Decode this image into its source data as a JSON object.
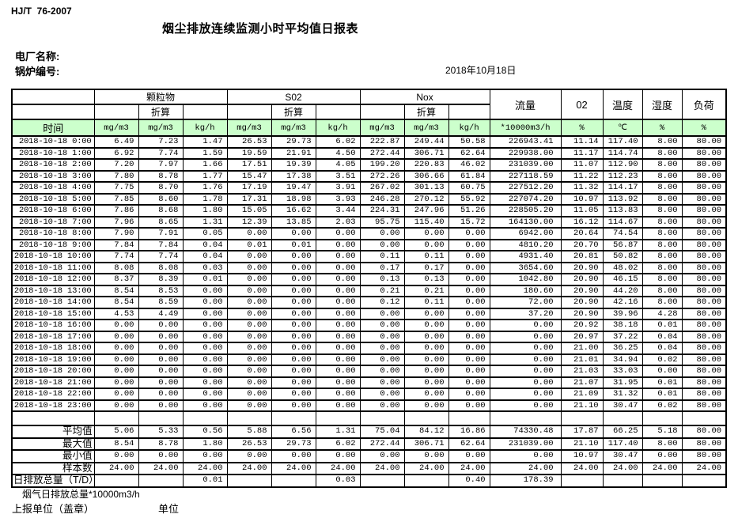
{
  "header": {
    "standard": "HJ/T  76-2007",
    "title": "烟尘排放连续监测小时平均值日报表",
    "plant_label": "电厂名称:",
    "boiler_label": "锅炉编号:",
    "date": "2018年10月18日"
  },
  "colors": {
    "header_green": "#ccffcc",
    "border": "#000000",
    "background": "#ffffff"
  },
  "table": {
    "time_header": "时间",
    "converted_label": "折算",
    "groups": [
      {
        "label": "颗粒物",
        "units": [
          "mg/m3",
          "mg/m3",
          "kg/h"
        ]
      },
      {
        "label": "S02",
        "units": [
          "mg/m3",
          "mg/m3",
          "kg/h"
        ]
      },
      {
        "label": "Nox",
        "units": [
          "mg/m3",
          "mg/m3",
          "kg/h"
        ]
      }
    ],
    "singles": [
      {
        "label": "流量",
        "unit": "*10000m3/h"
      },
      {
        "label": "02",
        "unit": "%"
      },
      {
        "label": "温度",
        "unit": "℃"
      },
      {
        "label": "湿度",
        "unit": "%"
      },
      {
        "label": "负荷",
        "unit": "%"
      }
    ],
    "rows": [
      {
        "time": "2018-10-18 0:00",
        "values": [
          "6.49",
          "7.23",
          "1.47",
          "26.53",
          "29.73",
          "6.02",
          "222.87",
          "249.44",
          "50.58",
          "226943.41",
          "11.14",
          "117.40",
          "8.00",
          "80.00"
        ]
      },
      {
        "time": "2018-10-18 1:00",
        "values": [
          "6.92",
          "7.74",
          "1.59",
          "19.59",
          "21.91",
          "4.50",
          "272.44",
          "306.71",
          "62.64",
          "229938.00",
          "11.17",
          "114.74",
          "8.00",
          "80.00"
        ]
      },
      {
        "time": "2018-10-18 2:00",
        "values": [
          "7.20",
          "7.97",
          "1.66",
          "17.51",
          "19.39",
          "4.05",
          "199.20",
          "220.83",
          "46.02",
          "231039.00",
          "11.07",
          "112.90",
          "8.00",
          "80.00"
        ]
      },
      {
        "time": "2018-10-18 3:00",
        "values": [
          "7.80",
          "8.78",
          "1.77",
          "15.47",
          "17.38",
          "3.51",
          "272.26",
          "306.66",
          "61.84",
          "227118.59",
          "11.22",
          "112.23",
          "8.00",
          "80.00"
        ]
      },
      {
        "time": "2018-10-18 4:00",
        "values": [
          "7.75",
          "8.70",
          "1.76",
          "17.19",
          "19.47",
          "3.91",
          "267.02",
          "301.13",
          "60.75",
          "227512.20",
          "11.32",
          "114.17",
          "8.00",
          "80.00"
        ]
      },
      {
        "time": "2018-10-18 5:00",
        "values": [
          "7.85",
          "8.60",
          "1.78",
          "17.31",
          "18.98",
          "3.93",
          "246.28",
          "270.12",
          "55.92",
          "227074.20",
          "10.97",
          "113.92",
          "8.00",
          "80.00"
        ]
      },
      {
        "time": "2018-10-18 6:00",
        "values": [
          "7.86",
          "8.68",
          "1.80",
          "15.05",
          "16.62",
          "3.44",
          "224.31",
          "247.96",
          "51.26",
          "228505.20",
          "11.05",
          "113.83",
          "8.00",
          "80.00"
        ]
      },
      {
        "time": "2018-10-18 7:00",
        "values": [
          "7.96",
          "8.65",
          "1.31",
          "12.39",
          "13.85",
          "2.03",
          "95.75",
          "115.40",
          "15.72",
          "164130.00",
          "16.12",
          "114.67",
          "8.00",
          "80.00"
        ]
      },
      {
        "time": "2018-10-18 8:00",
        "values": [
          "7.90",
          "7.91",
          "0.05",
          "0.00",
          "0.00",
          "0.00",
          "0.00",
          "0.00",
          "0.00",
          "6942.00",
          "20.64",
          "74.54",
          "8.00",
          "80.00"
        ]
      },
      {
        "time": "2018-10-18 9:00",
        "values": [
          "7.84",
          "7.84",
          "0.04",
          "0.01",
          "0.01",
          "0.00",
          "0.00",
          "0.00",
          "0.00",
          "4810.20",
          "20.70",
          "56.87",
          "8.00",
          "80.00"
        ]
      },
      {
        "time": "2018-10-18 10:00",
        "values": [
          "7.74",
          "7.74",
          "0.04",
          "0.00",
          "0.00",
          "0.00",
          "0.11",
          "0.11",
          "0.00",
          "4931.40",
          "20.81",
          "50.82",
          "8.00",
          "80.00"
        ]
      },
      {
        "time": "2018-10-18 11:00",
        "values": [
          "8.08",
          "8.08",
          "0.03",
          "0.00",
          "0.00",
          "0.00",
          "0.17",
          "0.17",
          "0.00",
          "3654.60",
          "20.90",
          "48.02",
          "8.00",
          "80.00"
        ]
      },
      {
        "time": "2018-10-18 12:00",
        "values": [
          "8.37",
          "8.39",
          "0.01",
          "0.00",
          "0.00",
          "0.00",
          "0.13",
          "0.13",
          "0.00",
          "1042.80",
          "20.90",
          "46.15",
          "8.00",
          "80.00"
        ]
      },
      {
        "time": "2018-10-18 13:00",
        "values": [
          "8.54",
          "8.53",
          "0.00",
          "0.00",
          "0.00",
          "0.00",
          "0.21",
          "0.21",
          "0.00",
          "180.60",
          "20.90",
          "44.20",
          "8.00",
          "80.00"
        ]
      },
      {
        "time": "2018-10-18 14:00",
        "values": [
          "8.54",
          "8.59",
          "0.00",
          "0.00",
          "0.00",
          "0.00",
          "0.12",
          "0.11",
          "0.00",
          "72.00",
          "20.90",
          "42.16",
          "8.00",
          "80.00"
        ]
      },
      {
        "time": "2018-10-18 15:00",
        "values": [
          "4.53",
          "4.49",
          "0.00",
          "0.00",
          "0.00",
          "0.00",
          "0.00",
          "0.00",
          "0.00",
          "37.20",
          "20.90",
          "39.96",
          "4.28",
          "80.00"
        ]
      },
      {
        "time": "2018-10-18 16:00",
        "values": [
          "0.00",
          "0.00",
          "0.00",
          "0.00",
          "0.00",
          "0.00",
          "0.00",
          "0.00",
          "0.00",
          "0.00",
          "20.92",
          "38.18",
          "0.01",
          "80.00"
        ]
      },
      {
        "time": "2018-10-18 17:00",
        "values": [
          "0.00",
          "0.00",
          "0.00",
          "0.00",
          "0.00",
          "0.00",
          "0.00",
          "0.00",
          "0.00",
          "0.00",
          "20.97",
          "37.22",
          "0.04",
          "80.00"
        ]
      },
      {
        "time": "2018-10-18 18:00",
        "values": [
          "0.00",
          "0.00",
          "0.00",
          "0.00",
          "0.00",
          "0.00",
          "0.00",
          "0.00",
          "0.00",
          "0.00",
          "21.00",
          "36.25",
          "0.04",
          "80.00"
        ]
      },
      {
        "time": "2018-10-18 19:00",
        "values": [
          "0.00",
          "0.00",
          "0.00",
          "0.00",
          "0.00",
          "0.00",
          "0.00",
          "0.00",
          "0.00",
          "0.00",
          "21.01",
          "34.94",
          "0.02",
          "80.00"
        ]
      },
      {
        "time": "2018-10-18 20:00",
        "values": [
          "0.00",
          "0.00",
          "0.00",
          "0.00",
          "0.00",
          "0.00",
          "0.00",
          "0.00",
          "0.00",
          "0.00",
          "21.03",
          "33.03",
          "0.00",
          "80.00"
        ]
      },
      {
        "time": "2018-10-18 21:00",
        "values": [
          "0.00",
          "0.00",
          "0.00",
          "0.00",
          "0.00",
          "0.00",
          "0.00",
          "0.00",
          "0.00",
          "0.00",
          "21.07",
          "31.95",
          "0.01",
          "80.00"
        ]
      },
      {
        "time": "2018-10-18 22:00",
        "values": [
          "0.00",
          "0.00",
          "0.00",
          "0.00",
          "0.00",
          "0.00",
          "0.00",
          "0.00",
          "0.00",
          "0.00",
          "21.09",
          "31.32",
          "0.01",
          "80.00"
        ]
      },
      {
        "time": "2018-10-18 23:00",
        "values": [
          "0.00",
          "0.00",
          "0.00",
          "0.00",
          "0.00",
          "0.00",
          "0.00",
          "0.00",
          "0.00",
          "0.00",
          "21.10",
          "30.47",
          "0.02",
          "80.00"
        ]
      }
    ],
    "summary": [
      {
        "label": "平均值",
        "align": "right",
        "values": [
          "5.06",
          "5.33",
          "0.56",
          "5.88",
          "6.56",
          "1.31",
          "75.04",
          "84.12",
          "16.86",
          "74330.48",
          "17.87",
          "66.25",
          "5.18",
          "80.00"
        ]
      },
      {
        "label": "最大值",
        "align": "right",
        "values": [
          "8.54",
          "8.78",
          "1.80",
          "26.53",
          "29.73",
          "6.02",
          "272.44",
          "306.71",
          "62.64",
          "231039.00",
          "21.10",
          "117.40",
          "8.00",
          "80.00"
        ]
      },
      {
        "label": "最小值",
        "align": "right",
        "values": [
          "0.00",
          "0.00",
          "0.00",
          "0.00",
          "0.00",
          "0.00",
          "0.00",
          "0.00",
          "0.00",
          "0.00",
          "10.97",
          "30.47",
          "0.00",
          "80.00"
        ]
      },
      {
        "label": "样本数",
        "align": "right",
        "values": [
          "24.00",
          "24.00",
          "24.00",
          "24.00",
          "24.00",
          "24.00",
          "24.00",
          "24.00",
          "24.00",
          "24.00",
          "24.00",
          "24.00",
          "24.00",
          "24.00"
        ]
      },
      {
        "label": "日排放总量（T/D）",
        "align": "left",
        "values": [
          "",
          "",
          "0.01",
          "",
          "",
          "0.03",
          "",
          "",
          "0.40",
          "178.39",
          "",
          "",
          "",
          ""
        ]
      }
    ]
  },
  "footer": {
    "note": "烟气日排放总量*10000m3/h",
    "report_unit_label": "上报单位（盖章）",
    "unit_label": "单位"
  }
}
